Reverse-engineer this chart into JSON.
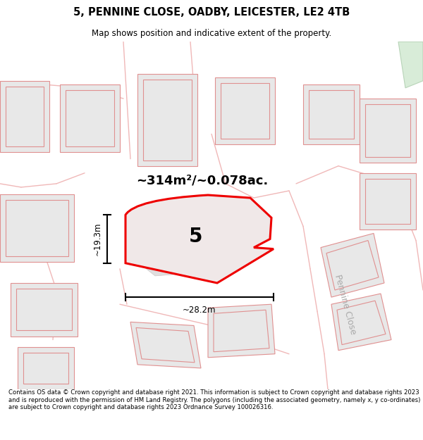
{
  "title_line1": "5, PENNINE CLOSE, OADBY, LEICESTER, LE2 4TB",
  "title_line2": "Map shows position and indicative extent of the property.",
  "area_text": "~314m²/~0.078ac.",
  "label_number": "5",
  "dim_width": "~28.2m",
  "dim_height": "~19.3m",
  "road_label": "Pennine Close",
  "footer_text": "Contains OS data © Crown copyright and database right 2021. This information is subject to Crown copyright and database rights 2023 and is reproduced with the permission of HM Land Registry. The polygons (including the associated geometry, namely x, y co-ordinates) are subject to Crown copyright and database rights 2023 Ordnance Survey 100026316.",
  "building_fill": "#e8e8e8",
  "building_stroke": "#e09090",
  "road_color": "#f0b8b8",
  "highlight_fill": "#f0e8e8",
  "highlight_stroke": "#ee0000",
  "green_fill": "#d8ecd8",
  "green_stroke": "#b8d4b8"
}
